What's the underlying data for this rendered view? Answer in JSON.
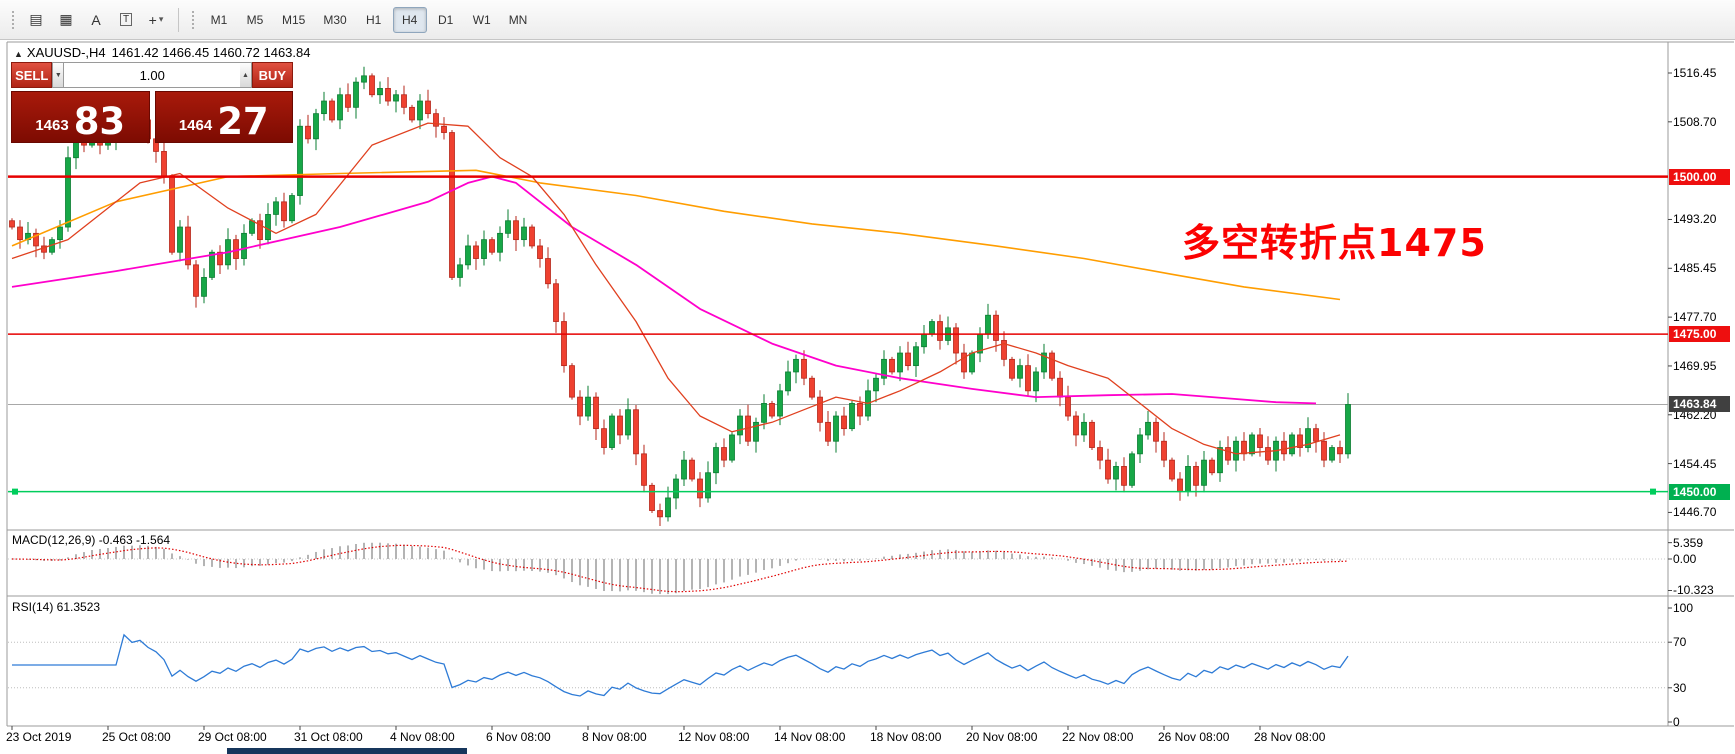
{
  "toolbar": {
    "tool_icons": [
      {
        "name": "chart-type-icon",
        "glyph": "▤"
      },
      {
        "name": "grid-icon",
        "glyph": "▦"
      },
      {
        "name": "text-tool-icon",
        "glyph": "A"
      },
      {
        "name": "label-tool-icon",
        "glyph": "T",
        "boxed": true
      },
      {
        "name": "crosshair-tool-icon",
        "glyph": "+",
        "caret": "▾"
      }
    ],
    "timeframes": [
      {
        "label": "M1",
        "active": false
      },
      {
        "label": "M5",
        "active": false
      },
      {
        "label": "M15",
        "active": false
      },
      {
        "label": "M30",
        "active": false
      },
      {
        "label": "H1",
        "active": false
      },
      {
        "label": "H4",
        "active": true
      },
      {
        "label": "D1",
        "active": false
      },
      {
        "label": "W1",
        "active": false
      },
      {
        "label": "MN",
        "active": false
      }
    ]
  },
  "chart": {
    "collapse_glyph": "▲",
    "symbol_line": "XAUUSD-,H4",
    "ohlc_line": "1461.42 1466.45 1460.72 1463.84"
  },
  "trade_panel": {
    "sell_label": "SELL",
    "buy_label": "BUY",
    "volume": "1.00",
    "volume_down_glyph": "▼",
    "volume_up_glyph": "▲",
    "sell_price_major": "1463",
    "sell_price_pips": "83",
    "buy_price_major": "1464",
    "buy_price_pips": "27"
  },
  "annotation": {
    "text": "多空转折点1475",
    "color": "#fb0202"
  },
  "chart_data": {
    "type": "candlestick",
    "title": "XAUUSD- H4",
    "candles": {
      "closes": [
        1492,
        1490,
        1491,
        1489,
        1488,
        1490,
        1492,
        1503,
        1506,
        1505,
        1507,
        1505,
        1506,
        1508,
        1510,
        1507,
        1509,
        1506,
        1504,
        1500,
        1488,
        1492,
        1486,
        1481,
        1484,
        1488,
        1486,
        1490,
        1487,
        1491,
        1493,
        1490,
        1494,
        1496,
        1493,
        1497,
        1508,
        1506,
        1510,
        1512,
        1509,
        1513,
        1511,
        1515,
        1516,
        1513,
        1514,
        1512,
        1513,
        1511,
        1509,
        1512,
        1510,
        1508,
        1507,
        1484,
        1486,
        1489,
        1487,
        1490,
        1488,
        1491,
        1493,
        1490,
        1492,
        1489,
        1487,
        1483,
        1477,
        1470,
        1465,
        1462,
        1465,
        1460,
        1457,
        1462,
        1459,
        1463,
        1456,
        1451,
        1447,
        1446,
        1449,
        1452,
        1455,
        1452,
        1449,
        1453,
        1457,
        1455,
        1459,
        1462,
        1458,
        1461,
        1464,
        1462,
        1466,
        1469,
        1471,
        1468,
        1465,
        1461,
        1458,
        1462,
        1460,
        1464,
        1462,
        1466,
        1468,
        1471,
        1469,
        1472,
        1470,
        1473,
        1475,
        1477,
        1474,
        1476,
        1472,
        1469,
        1472,
        1475,
        1478,
        1474,
        1471,
        1468,
        1470,
        1466,
        1469,
        1472,
        1468,
        1465,
        1462,
        1459,
        1461,
        1457,
        1455,
        1452,
        1454,
        1451,
        1456,
        1459,
        1461,
        1458,
        1455,
        1452,
        1450,
        1454,
        1451,
        1455,
        1453,
        1457,
        1455,
        1458,
        1456,
        1459,
        1457,
        1455,
        1458,
        1456,
        1459,
        1457,
        1460,
        1458,
        1455,
        1457,
        1456,
        1463.84
      ]
    },
    "price_axis_labels": [
      {
        "label": "1516.45",
        "price": 1516.45
      },
      {
        "label": "1508.70",
        "price": 1508.7
      },
      {
        "label": "1493.20",
        "price": 1493.2
      },
      {
        "label": "1485.45",
        "price": 1485.45
      },
      {
        "label": "1477.70",
        "price": 1477.7
      },
      {
        "label": "1469.95",
        "price": 1469.95
      },
      {
        "label": "1462.20",
        "price": 1462.2
      },
      {
        "label": "1454.45",
        "price": 1454.45
      },
      {
        "label": "1446.70",
        "price": 1446.7
      }
    ],
    "price_tags": [
      {
        "label": "1500.00",
        "price": 1500.0,
        "bg": "#ee0f0f"
      },
      {
        "label": "1475.00",
        "price": 1475.0,
        "bg": "#ee0f0f"
      },
      {
        "label": "1463.84",
        "price": 1463.84,
        "bg": "#404040"
      },
      {
        "label": "1450.00",
        "price": 1450.0,
        "bg": "#00b050"
      }
    ],
    "levels": [
      {
        "price": 1500.0,
        "color": "#e60000",
        "width": 2.4
      },
      {
        "price": 1475.0,
        "color": "#e60000",
        "width": 1.6
      },
      {
        "price": 1450.0,
        "color": "#00cd5c",
        "width": 1.6,
        "markers": true
      }
    ],
    "current_price": {
      "price": 1463.84,
      "color": "#a8a8a8"
    },
    "moving_averages": [
      {
        "name": "ma-slow-orange",
        "color": "#ff9d00",
        "width": 1.6,
        "points": [
          [
            0,
            1489
          ],
          [
            13,
            1496
          ],
          [
            27,
            1500
          ],
          [
            41,
            1500.5
          ],
          [
            58,
            1501
          ],
          [
            66,
            1499
          ],
          [
            78,
            1497
          ],
          [
            89,
            1494.5
          ],
          [
            100,
            1492.5
          ],
          [
            111,
            1491
          ],
          [
            123,
            1489
          ],
          [
            134,
            1487
          ],
          [
            145,
            1484.5
          ],
          [
            154,
            1482.5
          ],
          [
            166,
            1480.5
          ]
        ]
      },
      {
        "name": "ma-mid-magenta",
        "color": "#ff00cc",
        "width": 1.8,
        "points": [
          [
            0,
            1482.5
          ],
          [
            13,
            1485
          ],
          [
            27,
            1488
          ],
          [
            41,
            1492
          ],
          [
            52,
            1496
          ],
          [
            57,
            1499
          ],
          [
            60,
            1500
          ],
          [
            63,
            1499
          ],
          [
            66,
            1496
          ],
          [
            70,
            1492
          ],
          [
            78,
            1486
          ],
          [
            86,
            1479
          ],
          [
            95,
            1473.5
          ],
          [
            103,
            1470
          ],
          [
            111,
            1468
          ],
          [
            120,
            1466.3
          ],
          [
            128,
            1465
          ],
          [
            137,
            1465.3
          ],
          [
            145,
            1465.5
          ],
          [
            152,
            1464.8
          ],
          [
            158,
            1464.2
          ],
          [
            163,
            1464
          ]
        ]
      },
      {
        "name": "ma-fast-red",
        "color": "#e0401f",
        "width": 1.3,
        "points": [
          [
            0,
            1487
          ],
          [
            7,
            1490
          ],
          [
            16,
            1499
          ],
          [
            21,
            1500.5
          ],
          [
            27,
            1495
          ],
          [
            33,
            1491
          ],
          [
            38,
            1494
          ],
          [
            45,
            1505
          ],
          [
            52,
            1508.5
          ],
          [
            57,
            1508
          ],
          [
            61,
            1503
          ],
          [
            65,
            1500
          ],
          [
            69,
            1494
          ],
          [
            73,
            1486
          ],
          [
            78,
            1477
          ],
          [
            82,
            1468
          ],
          [
            86,
            1462
          ],
          [
            90,
            1459.5
          ],
          [
            95,
            1461
          ],
          [
            99,
            1463
          ],
          [
            103,
            1465
          ],
          [
            107,
            1464
          ],
          [
            111,
            1466
          ],
          [
            116,
            1469
          ],
          [
            120,
            1472
          ],
          [
            124,
            1473.5
          ],
          [
            128,
            1472
          ],
          [
            132,
            1470
          ],
          [
            137,
            1468
          ],
          [
            141,
            1464
          ],
          [
            145,
            1460
          ],
          [
            149,
            1457.5
          ],
          [
            153,
            1456
          ],
          [
            158,
            1456.5
          ],
          [
            162,
            1457.5
          ],
          [
            166,
            1459
          ]
        ]
      }
    ],
    "macd": {
      "label": "MACD(12,26,9) -0.463 -1.564",
      "fast": 12,
      "slow": 26,
      "signal": 9,
      "axis": [
        {
          "label": "5.359",
          "value": 5.359
        },
        {
          "label": "0.00",
          "value": 0
        },
        {
          "label": "-10.323",
          "value": -10.323
        }
      ]
    },
    "rsi": {
      "label": "RSI(14) 61.3523",
      "period": 14,
      "levels": [
        70,
        30
      ],
      "axis": [
        {
          "label": "100",
          "value": 100
        },
        {
          "label": "70",
          "value": 70
        },
        {
          "label": "30",
          "value": 30
        },
        {
          "label": "0",
          "value": 0
        }
      ]
    },
    "time_axis": [
      {
        "label": "23 Oct 2019",
        "bar": 0
      },
      {
        "label": "25 Oct 08:00",
        "bar": 12
      },
      {
        "label": "29 Oct 08:00",
        "bar": 24
      },
      {
        "label": "31 Oct 08:00",
        "bar": 36
      },
      {
        "label": "4 Nov 08:00",
        "bar": 48
      },
      {
        "label": "6 Nov 08:00",
        "bar": 60
      },
      {
        "label": "8 Nov 08:00",
        "bar": 72
      },
      {
        "label": "12 Nov 08:00",
        "bar": 84
      },
      {
        "label": "14 Nov 08:00",
        "bar": 96
      },
      {
        "label": "18 Nov 08:00",
        "bar": 108
      },
      {
        "label": "20 Nov 08:00",
        "bar": 120
      },
      {
        "label": "22 Nov 08:00",
        "bar": 132
      },
      {
        "label": "26 Nov 08:00",
        "bar": 144
      },
      {
        "label": "28 Nov 08:00",
        "bar": 156
      }
    ],
    "colors": {
      "up": "#17a747",
      "up_border": "#0a7d32",
      "down": "#ef4130",
      "down_border": "#b5271b",
      "rsi_line": "#2e7bd6",
      "macd_hist": "#b4b4b4",
      "macd_signal": "#e00000"
    }
  }
}
